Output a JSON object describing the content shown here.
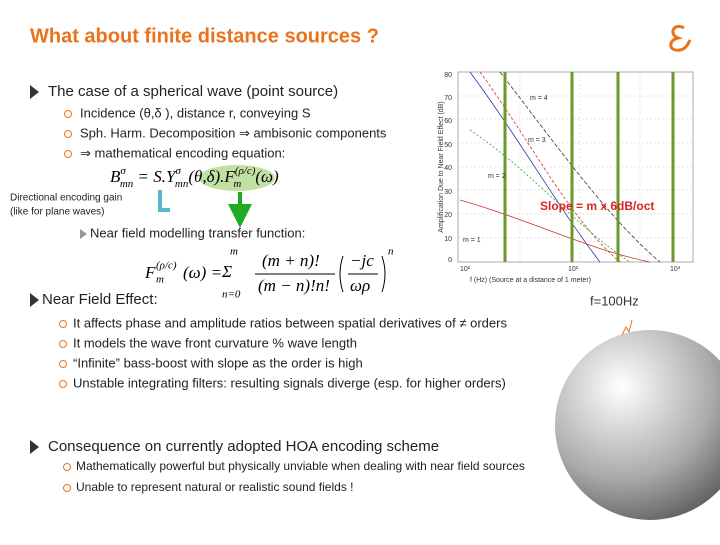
{
  "header": {
    "title": "What about finite distance sources ?"
  },
  "section1": {
    "bullet": "The case of a spherical wave (point source)",
    "items": [
      "Incidence (θ,δ ), distance r, conveying S",
      "Sph. Harm. Decomposition ⇒ ambisonic components",
      "⇒ mathematical encoding equation:"
    ],
    "equation": [
      {
        "base": "B",
        "sup": "σ",
        "sub": "mn"
      },
      {
        "base": " = S.Y",
        "sup": "σ",
        "sub": "mn"
      },
      {
        "base": "(θ,δ).F",
        "sup": "(ρ/c)",
        "sub": "m"
      },
      {
        "base": "(ω)"
      }
    ],
    "annotation": [
      "Directional encoding gain",
      "(like for plane waves)"
    ],
    "slope": "Slope = m x 6dB/oct",
    "transfer": "Near field modelling transfer function:",
    "equation2": {
      "lhs": "F",
      "lhs_sup": "(ρ/c)",
      "lhs_sub": "m",
      "lhs_arg": "(ω) =",
      "sum_top": "m",
      "sum": "Σ",
      "sum_bot": "n=0",
      "num": "(m + n)!",
      "den": "(m − n)!n!",
      "term_num": "−jc",
      "term_den": "ωρ",
      "exp": "n"
    }
  },
  "section2": {
    "bullet": "Near Field Effect:",
    "items": [
      "It affects phase and amplitude ratios between spatial derivatives of ≠ orders",
      "It models the wave front curvature % wave length",
      "“Infinite” bass-boost with slope as the order is high",
      "Unstable integrating filters: resulting signals diverge (esp. for higher orders)"
    ],
    "freq": "f=100Hz"
  },
  "section3": {
    "bullet": "Consequence on currently adopted HOA encoding scheme",
    "items": [
      "Mathematically powerful but physically unviable when dealing with near field sources",
      "Unable to represent natural or realistic sound fields !"
    ]
  },
  "graph": {
    "yticks": [
      "80",
      "70",
      "60",
      "50",
      "40",
      "30",
      "20",
      "10",
      "0"
    ],
    "xticks": [
      "10¹",
      "10²",
      "10³"
    ],
    "ylabel": "Amplification Due to Near Field Effect (dB)",
    "xlabel": "f (Hz) (Source at a distance of 1 meter)",
    "curves": [
      "m = 4",
      "m = 3",
      "m = 2",
      "m = 1"
    ]
  }
}
